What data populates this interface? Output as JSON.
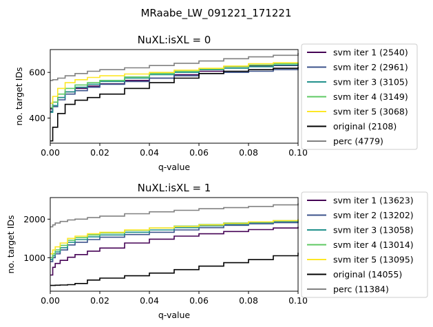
{
  "figure_title": "MRaabe_LW_091221_171221",
  "chart_data": [
    {
      "type": "line",
      "title": "NuXL:isXL = 0",
      "xlabel": "q-value",
      "ylabel": "no. target IDs",
      "xlim": [
        0.0,
        0.1
      ],
      "ylim": [
        290,
        700
      ],
      "xticks": [
        0.0,
        0.02,
        0.04,
        0.06,
        0.08,
        0.1
      ],
      "xtick_labels": [
        "0.00",
        "0.02",
        "0.04",
        "0.06",
        "0.08",
        "0.10"
      ],
      "yticks": [
        400,
        600
      ],
      "ytick_labels": [
        "400",
        "600"
      ],
      "grid": false,
      "legend_position": "outside right",
      "series": [
        {
          "name": "svm iter 1 (2540)",
          "color": "#440154",
          "x": [
            0.0,
            0.001,
            0.003,
            0.006,
            0.01,
            0.015,
            0.02,
            0.03,
            0.04,
            0.05,
            0.06,
            0.07,
            0.08,
            0.09,
            0.1
          ],
          "y": [
            440,
            470,
            490,
            515,
            530,
            540,
            550,
            565,
            575,
            590,
            605,
            625,
            628,
            630,
            635
          ]
        },
        {
          "name": "svm iter 2 (2961)",
          "color": "#3b528b",
          "x": [
            0.0,
            0.001,
            0.003,
            0.006,
            0.01,
            0.015,
            0.02,
            0.03,
            0.04,
            0.05,
            0.06,
            0.07,
            0.08,
            0.09,
            0.1
          ],
          "y": [
            430,
            450,
            480,
            505,
            520,
            535,
            548,
            560,
            575,
            585,
            595,
            600,
            605,
            612,
            620
          ]
        },
        {
          "name": "svm iter 3 (3105)",
          "color": "#21918c",
          "x": [
            0.0,
            0.001,
            0.003,
            0.006,
            0.01,
            0.015,
            0.02,
            0.03,
            0.04,
            0.05,
            0.06,
            0.07,
            0.08,
            0.09,
            0.1
          ],
          "y": [
            425,
            455,
            490,
            515,
            535,
            548,
            560,
            575,
            590,
            600,
            612,
            618,
            625,
            632,
            640
          ]
        },
        {
          "name": "svm iter 4 (3149)",
          "color": "#5ec962",
          "x": [
            0.0,
            0.001,
            0.003,
            0.006,
            0.01,
            0.015,
            0.02,
            0.03,
            0.04,
            0.05,
            0.06,
            0.07,
            0.08,
            0.09,
            0.1
          ],
          "y": [
            445,
            470,
            505,
            530,
            545,
            555,
            565,
            580,
            595,
            605,
            615,
            625,
            632,
            638,
            642
          ]
        },
        {
          "name": "svm iter 5 (3068)",
          "color": "#fde725",
          "x": [
            0.0,
            0.001,
            0.003,
            0.006,
            0.01,
            0.015,
            0.02,
            0.03,
            0.04,
            0.05,
            0.06,
            0.07,
            0.08,
            0.09,
            0.1
          ],
          "y": [
            465,
            495,
            530,
            555,
            568,
            578,
            585,
            593,
            600,
            610,
            618,
            628,
            638,
            642,
            645
          ]
        },
        {
          "name": "original (2108)",
          "color": "#000000",
          "x": [
            0.0,
            0.001,
            0.003,
            0.006,
            0.01,
            0.015,
            0.02,
            0.03,
            0.04,
            0.05,
            0.06,
            0.07,
            0.08,
            0.09,
            0.1
          ],
          "y": [
            300,
            360,
            420,
            460,
            478,
            490,
            505,
            530,
            555,
            575,
            595,
            605,
            612,
            618,
            625
          ]
        },
        {
          "name": "perc (4779)",
          "color": "#808080",
          "x": [
            0.0,
            0.001,
            0.003,
            0.006,
            0.01,
            0.015,
            0.02,
            0.03,
            0.04,
            0.05,
            0.06,
            0.07,
            0.08,
            0.09,
            0.1
          ],
          "y": [
            565,
            568,
            575,
            585,
            595,
            605,
            612,
            620,
            630,
            640,
            650,
            660,
            668,
            675,
            685
          ]
        }
      ]
    },
    {
      "type": "line",
      "title": "NuXL:isXL = 1",
      "xlabel": "q-value",
      "ylabel": "no. target IDs",
      "xlim": [
        0.0,
        0.1
      ],
      "ylim": [
        130,
        2560
      ],
      "xticks": [
        0.0,
        0.02,
        0.04,
        0.06,
        0.08,
        0.1
      ],
      "xtick_labels": [
        "0.00",
        "0.02",
        "0.04",
        "0.06",
        "0.08",
        "0.10"
      ],
      "yticks": [
        1000,
        2000
      ],
      "ytick_labels": [
        "1000",
        "2000"
      ],
      "grid": false,
      "legend_position": "outside right",
      "series": [
        {
          "name": "svm iter 1 (13623)",
          "color": "#440154",
          "x": [
            0.0,
            0.001,
            0.002,
            0.004,
            0.007,
            0.01,
            0.015,
            0.02,
            0.03,
            0.04,
            0.05,
            0.06,
            0.07,
            0.08,
            0.09,
            0.1
          ],
          "y": [
            550,
            750,
            850,
            930,
            1010,
            1080,
            1170,
            1250,
            1380,
            1480,
            1560,
            1620,
            1680,
            1730,
            1770,
            1800
          ]
        },
        {
          "name": "svm iter 2 (13202)",
          "color": "#3b528b",
          "x": [
            0.0,
            0.001,
            0.002,
            0.004,
            0.007,
            0.01,
            0.015,
            0.02,
            0.03,
            0.04,
            0.05,
            0.06,
            0.07,
            0.08,
            0.09,
            0.1
          ],
          "y": [
            900,
            1000,
            1100,
            1200,
            1330,
            1400,
            1470,
            1530,
            1600,
            1660,
            1720,
            1780,
            1840,
            1880,
            1910,
            1940
          ]
        },
        {
          "name": "svm iter 3 (13058)",
          "color": "#21918c",
          "x": [
            0.0,
            0.001,
            0.002,
            0.004,
            0.007,
            0.01,
            0.015,
            0.02,
            0.03,
            0.04,
            0.05,
            0.06,
            0.07,
            0.08,
            0.09,
            0.1
          ],
          "y": [
            950,
            1050,
            1150,
            1260,
            1400,
            1470,
            1540,
            1590,
            1660,
            1720,
            1780,
            1830,
            1870,
            1910,
            1940,
            1970
          ]
        },
        {
          "name": "svm iter 4 (13014)",
          "color": "#5ec962",
          "x": [
            0.0,
            0.001,
            0.002,
            0.004,
            0.007,
            0.01,
            0.015,
            0.02,
            0.03,
            0.04,
            0.05,
            0.06,
            0.07,
            0.08,
            0.09,
            0.1
          ],
          "y": [
            1000,
            1100,
            1200,
            1320,
            1450,
            1520,
            1590,
            1640,
            1710,
            1770,
            1820,
            1860,
            1900,
            1930,
            1960,
            1990
          ]
        },
        {
          "name": "svm iter 5 (13095)",
          "color": "#fde725",
          "x": [
            0.0,
            0.001,
            0.002,
            0.004,
            0.007,
            0.01,
            0.015,
            0.02,
            0.03,
            0.04,
            0.05,
            0.06,
            0.07,
            0.08,
            0.09,
            0.1
          ],
          "y": [
            1100,
            1200,
            1280,
            1380,
            1500,
            1560,
            1620,
            1660,
            1720,
            1770,
            1810,
            1850,
            1890,
            1930,
            1960,
            2000
          ]
        },
        {
          "name": "original (14055)",
          "color": "#000000",
          "x": [
            0.0,
            0.001,
            0.002,
            0.004,
            0.007,
            0.01,
            0.015,
            0.02,
            0.03,
            0.04,
            0.05,
            0.06,
            0.07,
            0.08,
            0.09,
            0.1
          ],
          "y": [
            280,
            280,
            285,
            290,
            300,
            330,
            420,
            470,
            530,
            600,
            690,
            780,
            870,
            950,
            1050,
            1130
          ]
        },
        {
          "name": "perc (11384)",
          "color": "#808080",
          "x": [
            0.0,
            0.001,
            0.002,
            0.004,
            0.007,
            0.01,
            0.015,
            0.02,
            0.03,
            0.04,
            0.05,
            0.06,
            0.07,
            0.08,
            0.09,
            0.1
          ],
          "y": [
            1800,
            1850,
            1900,
            1940,
            1980,
            2000,
            2040,
            2080,
            2140,
            2190,
            2230,
            2270,
            2300,
            2330,
            2370,
            2410
          ]
        }
      ]
    }
  ]
}
